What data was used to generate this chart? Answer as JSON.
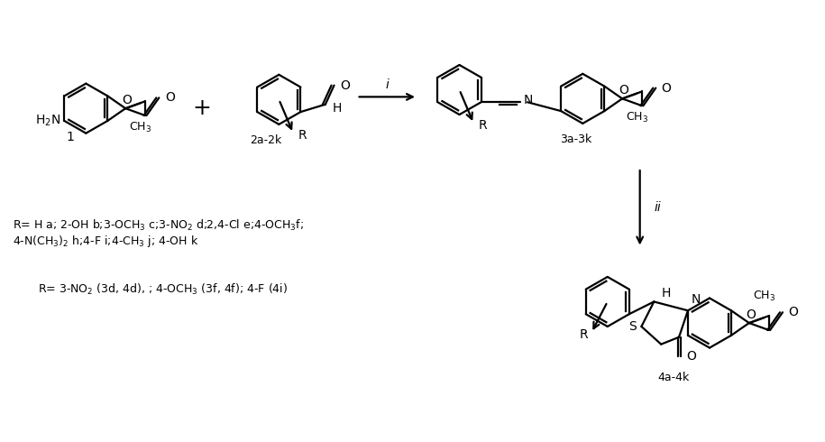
{
  "bg_color": "#ffffff",
  "lc": "#000000",
  "lw": 1.6,
  "fs": 10,
  "r_line1": "R= H a; 2-OH b;3-OCH$_3$ c;3-NO$_2$ d;2,4-Cl e;4-OCH$_3$f;",
  "r_line2": "4-N(CH$_3$)$_2$ h;4-F i;4-CH$_3$ j; 4-OH k",
  "r_line3": "R= 3-NO$_2$ (3d, 4d), ; 4-OCH$_3$ (3f, 4f); 4-F (4i)"
}
